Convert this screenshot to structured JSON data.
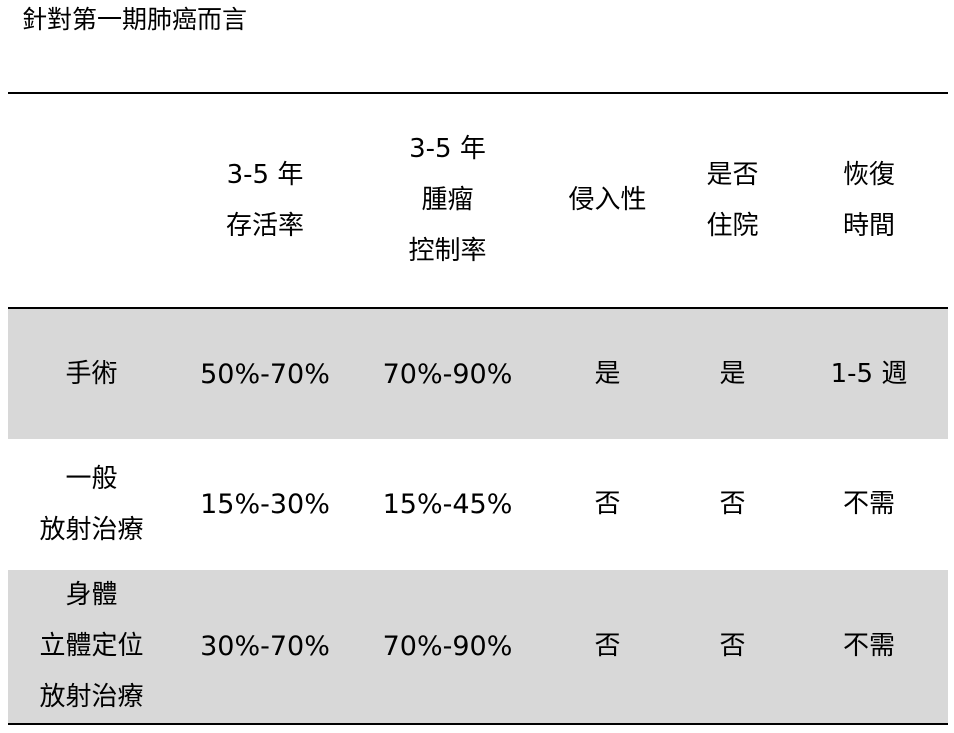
{
  "title": "針對第一期肺癌而言",
  "table": {
    "headers": [
      [],
      [
        "3-5 年",
        "存活率"
      ],
      [
        "3-5 年",
        "腫瘤",
        "控制率"
      ],
      [
        "侵入性"
      ],
      [
        "是否",
        "住院"
      ],
      [
        "恢復",
        "時間"
      ]
    ],
    "rows": [
      {
        "name": [
          "手術"
        ],
        "survival": "50%-70%",
        "control": "70%-90%",
        "invasive": "是",
        "hospital": "是",
        "recovery": "1-5 週"
      },
      {
        "name": [
          "一般",
          "放射治療"
        ],
        "survival": "15%-30%",
        "control": "15%-45%",
        "invasive": "否",
        "hospital": "否",
        "recovery": "不需"
      },
      {
        "name": [
          "身體",
          "立體定位",
          "放射治療"
        ],
        "survival": "30%-70%",
        "control": "70%-90%",
        "invasive": "否",
        "hospital": "否",
        "recovery": "不需"
      }
    ],
    "row_shading": "#d8d8d8"
  }
}
